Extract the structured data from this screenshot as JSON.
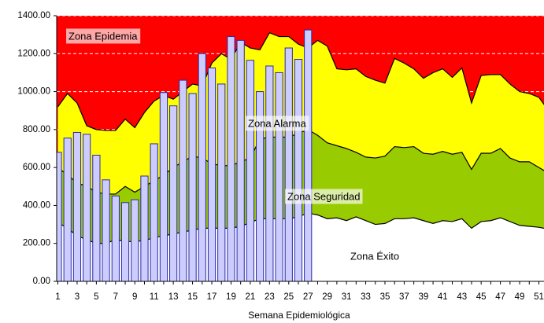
{
  "chart_data": {
    "type": "epidemic-channel",
    "x_label": "Semana Epidemiológica",
    "annotation": "Zona Epidemia",
    "background_color": "#ff0000",
    "categories": [
      1,
      null,
      3,
      null,
      5,
      null,
      7,
      null,
      9,
      null,
      11,
      null,
      13,
      null,
      15,
      null,
      17,
      null,
      19,
      null,
      21,
      null,
      23,
      null,
      25,
      null,
      27,
      null,
      29,
      null,
      31,
      null,
      33,
      null,
      35,
      null,
      37,
      null,
      39,
      null,
      41,
      null,
      43,
      null,
      45,
      null,
      47,
      null,
      49,
      null,
      51,
      null
    ],
    "series": [
      {
        "name": "Zona Éxito",
        "color": "#ffffff",
        "values": [
          310,
          280,
          240,
          220,
          200,
          200,
          220,
          210,
          210,
          215,
          230,
          240,
          250,
          260,
          270,
          280,
          280,
          280,
          280,
          290,
          310,
          330,
          330,
          330,
          330,
          340,
          360,
          350,
          330,
          335,
          320,
          340,
          320,
          300,
          305,
          330,
          330,
          335,
          320,
          305,
          320,
          315,
          330,
          280,
          315,
          320,
          335,
          315,
          295,
          290,
          285,
          275
        ]
      },
      {
        "name": "Zona Seguridad",
        "color": "#99cc00",
        "values": [
          290,
          280,
          280,
          280,
          270,
          260,
          240,
          290,
          260,
          285,
          300,
          320,
          350,
          370,
          390,
          370,
          340,
          330,
          330,
          340,
          340,
          420,
          430,
          430,
          430,
          440,
          440,
          420,
          400,
          380,
          380,
          340,
          335,
          350,
          355,
          380,
          375,
          375,
          355,
          365,
          365,
          355,
          350,
          310,
          360,
          355,
          365,
          335,
          335,
          340,
          315,
          295
        ]
      },
      {
        "name": "Zona Alarma",
        "color": "#ffff00",
        "values": [
          320,
          430,
          420,
          320,
          330,
          335,
          335,
          355,
          340,
          390,
          420,
          420,
          360,
          370,
          380,
          380,
          530,
          590,
          560,
          630,
          580,
          470,
          550,
          530,
          530,
          470,
          430,
          500,
          510,
          405,
          415,
          440,
          425,
          410,
          385,
          465,
          445,
          410,
          395,
          430,
          435,
          405,
          445,
          350,
          410,
          415,
          390,
          390,
          370,
          360,
          370,
          330
        ]
      }
    ],
    "bars": {
      "color": "#ccccff",
      "edge_color": "#2a2aa8",
      "values": [
        680,
        755,
        785,
        775,
        665,
        535,
        450,
        415,
        430,
        555,
        725,
        995,
        925,
        1060,
        990,
        1200,
        1125,
        1040,
        1290,
        1270,
        1165,
        1000,
        1135,
        1100,
        1230,
        1170,
        1325,
        null,
        null,
        null,
        null,
        null,
        null,
        null,
        null,
        null,
        null,
        null,
        null,
        null,
        null,
        null,
        null,
        null,
        null,
        null,
        null,
        null,
        null,
        null,
        null,
        null
      ]
    },
    "ylim": [
      0,
      1400
    ],
    "yticks": [
      {
        "value": 0,
        "label": "0.00"
      },
      {
        "value": 200,
        "label": "200.00"
      },
      {
        "value": 400,
        "label": "400.00"
      },
      {
        "value": 600,
        "label": "600.00"
      },
      {
        "value": 800,
        "label": "800.00"
      },
      {
        "value": 1000,
        "label": "1000.00"
      },
      {
        "value": 1200,
        "label": "1200.00"
      },
      {
        "value": 1400,
        "label": "1400.00"
      }
    ],
    "grid": true
  }
}
